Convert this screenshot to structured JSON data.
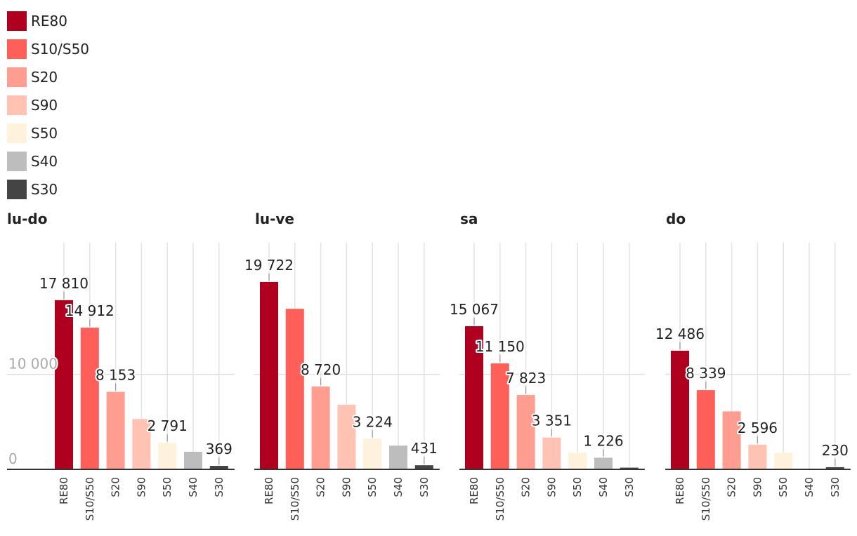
{
  "legend": [
    {
      "label": "RE80",
      "color": "#b0001f"
    },
    {
      "label": "S10/S50",
      "color": "#ff5f59"
    },
    {
      "label": "S20",
      "color": "#ff9e90"
    },
    {
      "label": "S90",
      "color": "#ffc2b3"
    },
    {
      "label": "S50",
      "color": "#fff2dc"
    },
    {
      "label": "S40",
      "color": "#bdbdbd"
    },
    {
      "label": "S30",
      "color": "#444444"
    }
  ],
  "chart_data": [
    {
      "type": "bar",
      "title": "lu-do",
      "categories": [
        "RE80",
        "S10/S50",
        "S20",
        "S90",
        "S50",
        "S40",
        "S30"
      ],
      "values": [
        17810,
        14912,
        8153,
        5300,
        2791,
        1850,
        369
      ],
      "labels": [
        "17 810",
        "14 912",
        "8 153",
        null,
        "2 791",
        null,
        "369"
      ],
      "ylim": [
        0,
        24000
      ],
      "yticks": [
        0,
        10000
      ],
      "ytick_labels": [
        "0",
        "10 000"
      ]
    },
    {
      "type": "bar",
      "title": "lu-ve",
      "categories": [
        "RE80",
        "S10/S50",
        "S20",
        "S90",
        "S50",
        "S40",
        "S30"
      ],
      "values": [
        19722,
        16900,
        8720,
        6800,
        3224,
        2500,
        431
      ],
      "labels": [
        "19 722",
        null,
        "8 720",
        null,
        "3 224",
        null,
        "431"
      ],
      "ylim": [
        0,
        24000
      ]
    },
    {
      "type": "bar",
      "title": "sa",
      "categories": [
        "RE80",
        "S10/S50",
        "S20",
        "S90",
        "S50",
        "S40",
        "S30"
      ],
      "values": [
        15067,
        11150,
        7823,
        3351,
        1750,
        1226,
        180
      ],
      "labels": [
        "15 067",
        "11 150",
        "7 823",
        "3 351",
        null,
        "1 226",
        null
      ],
      "ylim": [
        0,
        24000
      ]
    },
    {
      "type": "bar",
      "title": "do",
      "categories": [
        "RE80",
        "S10/S50",
        "S20",
        "S90",
        "S50",
        "S40",
        "S30"
      ],
      "values": [
        12486,
        8339,
        6100,
        2596,
        1750,
        60,
        230
      ],
      "labels": [
        "12 486",
        "8 339",
        null,
        "2 596",
        null,
        null,
        "230"
      ],
      "ylim": [
        0,
        24000
      ]
    }
  ]
}
